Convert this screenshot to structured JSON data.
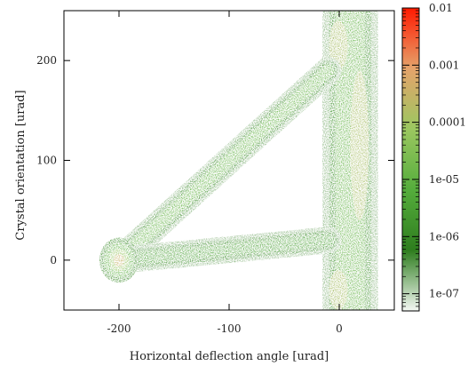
{
  "chart_data": {
    "type": "heatmap",
    "title": "",
    "xlabel": "Horizontal deflection angle [urad]",
    "ylabel": "Crystal orientation [urad]",
    "xlim": [
      -250,
      50
    ],
    "ylim": [
      -50,
      250
    ],
    "xticks": [
      {
        "value": -200,
        "label": "-200"
      },
      {
        "value": -100,
        "label": "-100"
      },
      {
        "value": 0,
        "label": "0"
      }
    ],
    "yticks": [
      {
        "value": 0,
        "label": "0"
      },
      {
        "value": 100,
        "label": "100"
      },
      {
        "value": 200,
        "label": "200"
      }
    ],
    "colorbar": {
      "scale": "log",
      "range": [
        5e-08,
        0.01
      ],
      "ticks": [
        {
          "value": 1e-07,
          "label": "1e-07"
        },
        {
          "value": 1e-06,
          "label": "1e-06"
        },
        {
          "value": 1e-05,
          "label": "1e-05"
        },
        {
          "value": 0.0001,
          "label": "0.0001"
        },
        {
          "value": 0.001,
          "label": "0.001"
        },
        {
          "value": 0.01,
          "label": "0.01"
        }
      ],
      "colors": [
        "#f4f8f4",
        "#2e7d1e",
        "#55ad3c",
        "#9bc760",
        "#e5a36b",
        "#ff1a00"
      ]
    },
    "regions": [
      {
        "name": "amorphous-band",
        "x_center": 10,
        "x_width": 24,
        "y_from": -50,
        "y_to": 250
      },
      {
        "name": "volume-reflection-arm",
        "from": [
          -200,
          0
        ],
        "to": [
          -10,
          190
        ],
        "peak": 1e-05
      },
      {
        "name": "dechanneling-arm",
        "from": [
          -200,
          0
        ],
        "to": [
          -10,
          20
        ],
        "peak": 3e-06
      },
      {
        "name": "channeling-spot",
        "center": [
          -200,
          0
        ],
        "peak": 0.0003
      }
    ]
  }
}
